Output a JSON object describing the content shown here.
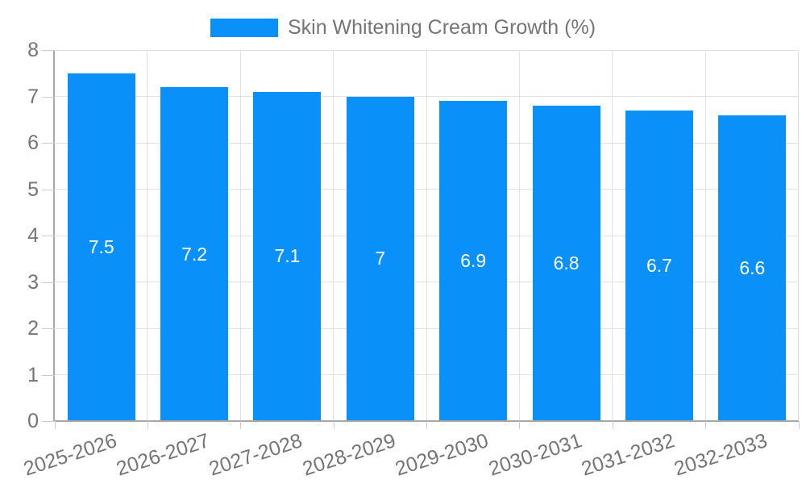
{
  "colors": {
    "bar": "#0990f9",
    "axis": "#a8a8a8",
    "grid": "#e2e2e2",
    "tick": "#cccccc",
    "text": "#757575",
    "value_text": "#ffffff",
    "background": "#ffffff"
  },
  "chart_data": {
    "type": "bar",
    "title": "Skin Whitening Cream Growth (%)",
    "legend": "Skin Whitening Cream Growth (%)",
    "legend_position": "top-center",
    "categories": [
      "2025-2026",
      "2026-2027",
      "2027-2028",
      "2028-2029",
      "2029-2030",
      "2030-2031",
      "2031-2032",
      "2032-2033"
    ],
    "values": [
      7.5,
      7.2,
      7.1,
      7.0,
      6.9,
      6.8,
      6.7,
      6.6
    ],
    "value_labels": [
      "7.5",
      "7.2",
      "7.1",
      "7",
      "6.9",
      "6.8",
      "6.7",
      "6.6"
    ],
    "xlabel": "",
    "ylabel": "",
    "ylim": [
      0,
      8
    ],
    "yticks": [
      0,
      1,
      2,
      3,
      4,
      5,
      6,
      7,
      8
    ],
    "grid": true,
    "value_label_position": "bar-center",
    "xtick_rotation_deg": -18
  }
}
